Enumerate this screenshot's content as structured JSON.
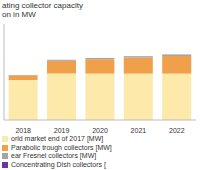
{
  "chart_data": {
    "type": "bar",
    "title": "ating collector capacity\non in MW",
    "categories": [
      "2018",
      "2019",
      "2020",
      "2021",
      "2022"
    ],
    "series": [
      {
        "name": "orld market end of 2017 [MW]",
        "color": "#fde9a9",
        "values": [
          2500,
          2900,
          2900,
          2900,
          2900
        ]
      },
      {
        "name": "Parabolic trough collectors [MW]",
        "color": "#f0a04b",
        "values": [
          300,
          800,
          900,
          1000,
          1100
        ]
      },
      {
        "name": "ear Fresnel collectors [MW]",
        "color": "#a5a5a5",
        "values": [
          20,
          60,
          80,
          90,
          100
        ]
      },
      {
        "name": "Concentrating Dish collectors [",
        "color": "#7030a0",
        "values": [
          0,
          0,
          0,
          0,
          0
        ]
      }
    ],
    "ylim": [
      0,
      6000
    ],
    "stacked": true,
    "tick_labels": "x",
    "grid": false
  }
}
